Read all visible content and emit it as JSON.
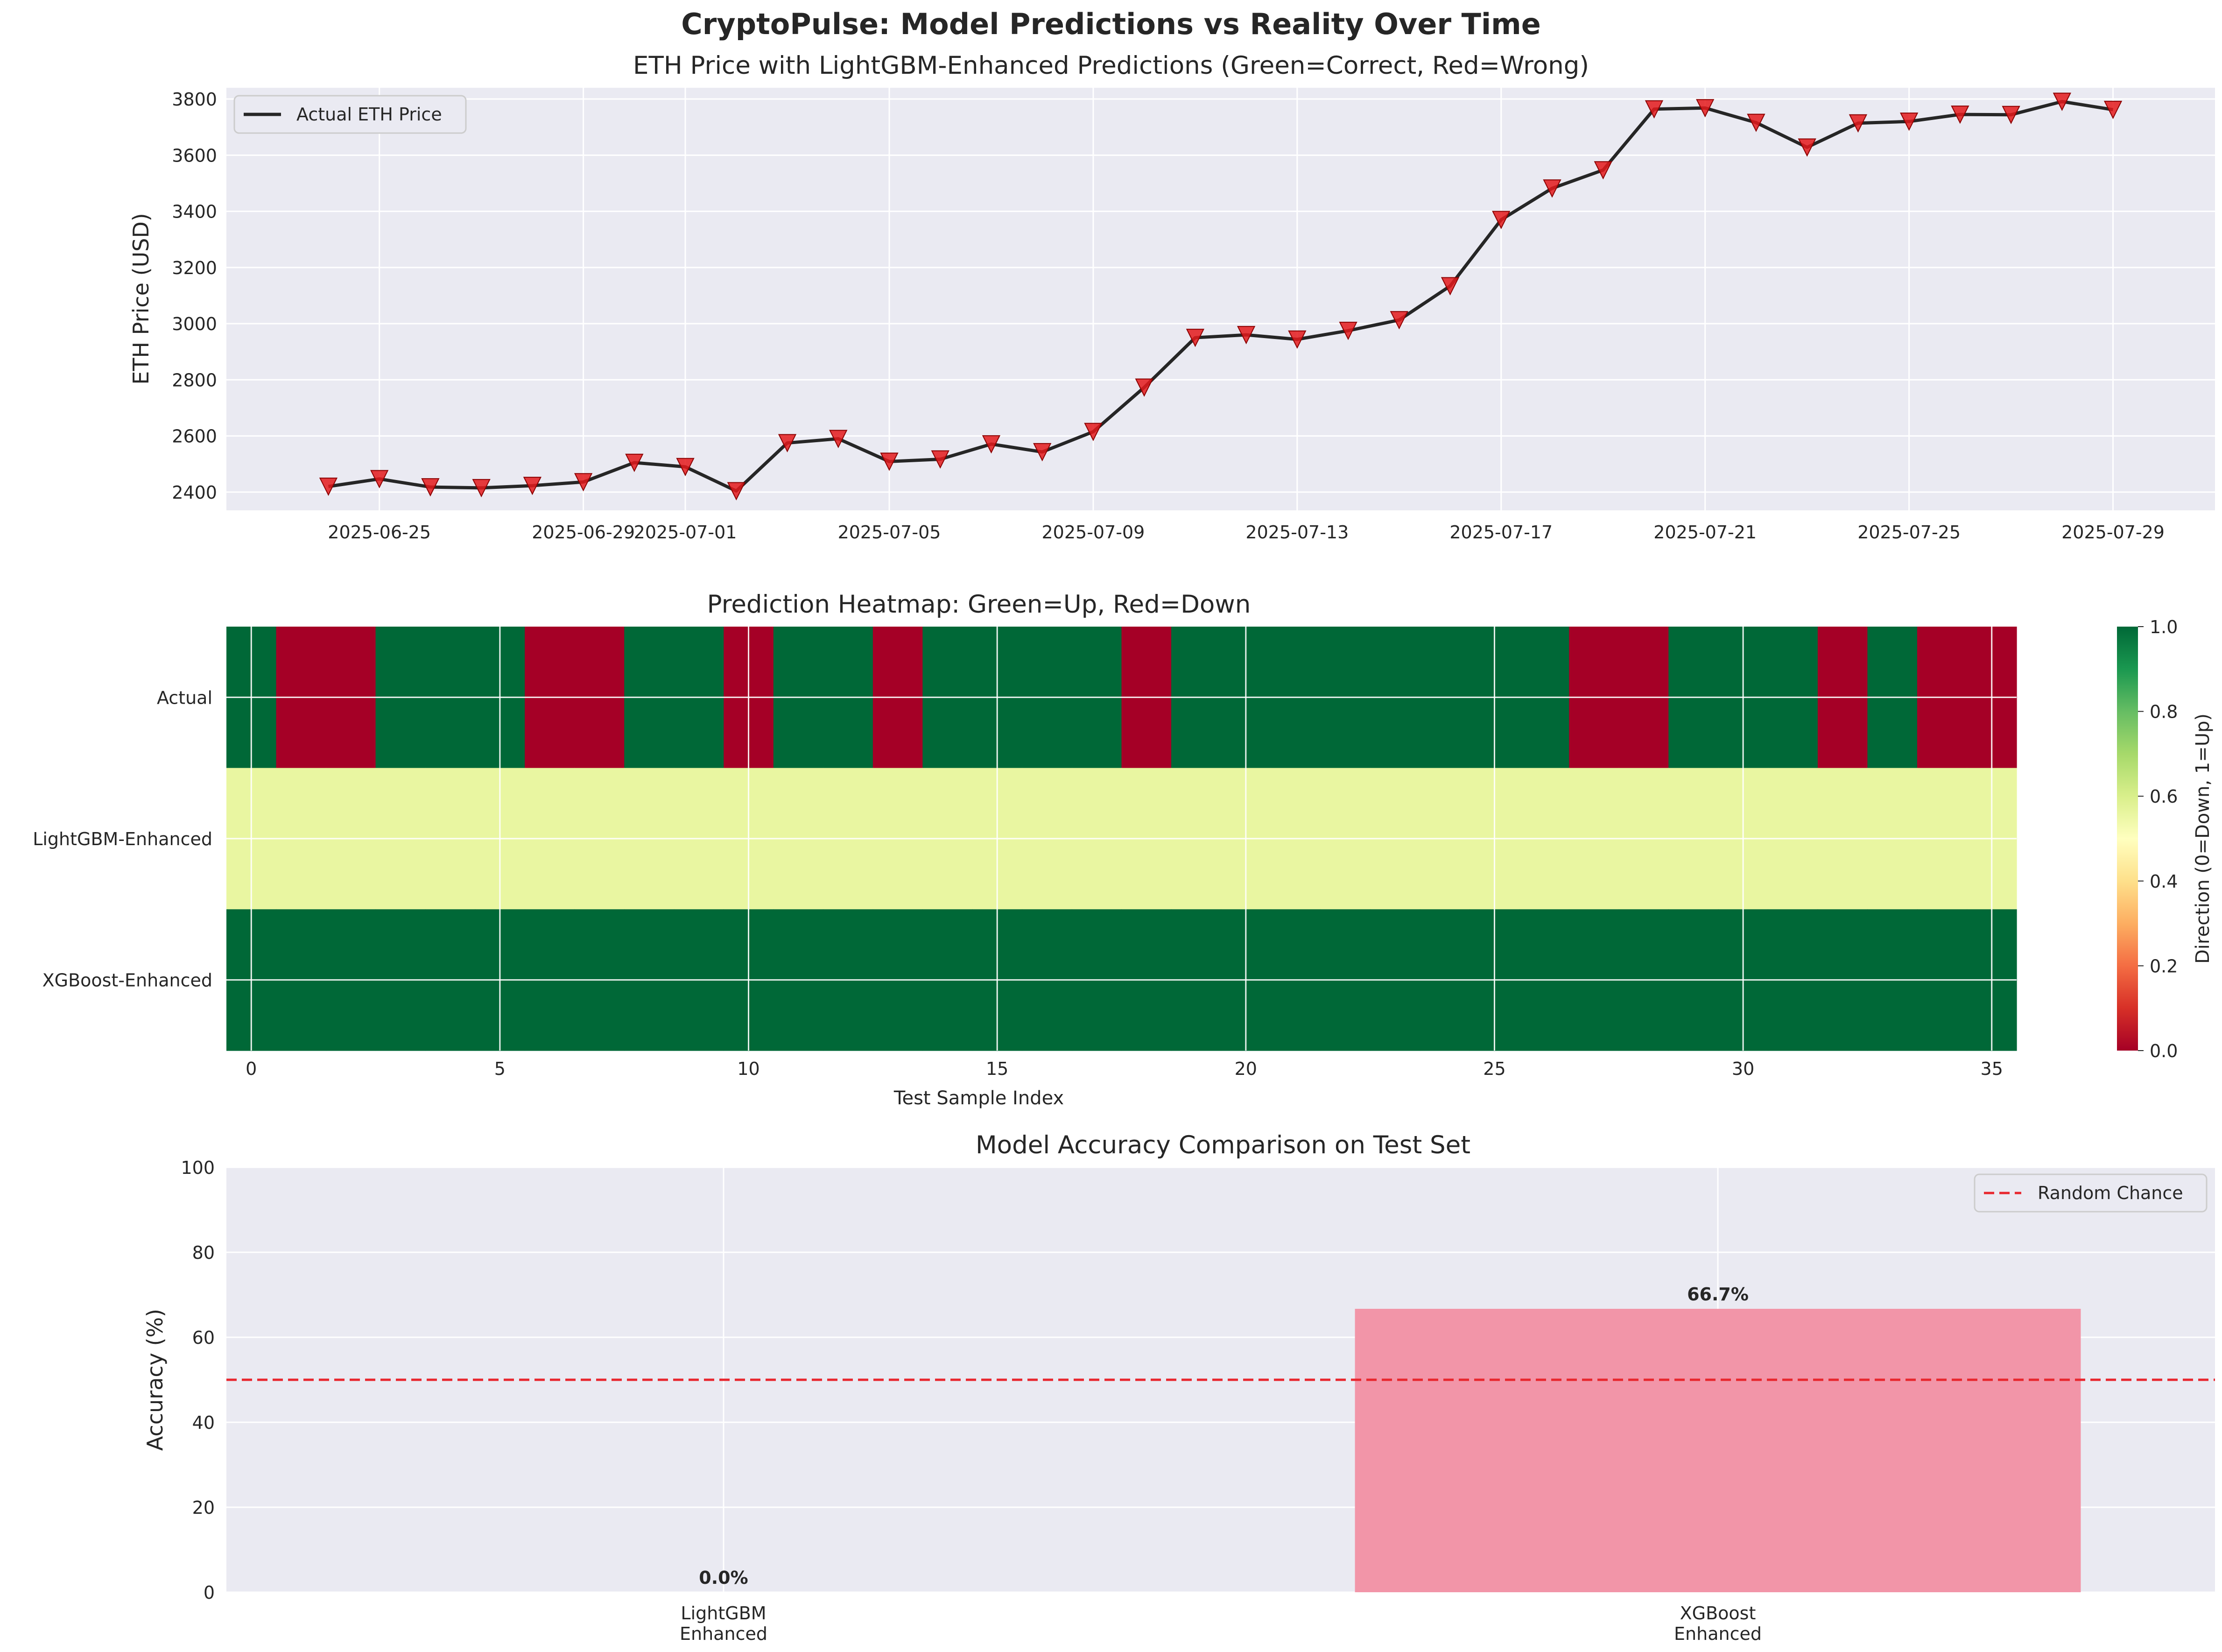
{
  "figure_title": "CryptoPulse: Model Predictions vs Reality Over Time",
  "colors": {
    "background": "#ffffff",
    "axes_face": "#eaeaf2",
    "grid": "#ffffff",
    "price_line": "#262626",
    "wrong_marker": "#e41a1c",
    "up_green": "#006837",
    "down_red": "#a50026",
    "neutral_yellow": "#e9f6a1",
    "bar_pink": "#f295a8",
    "random_chance": "#e8262d"
  },
  "chart_data": [
    {
      "type": "line",
      "title": "ETH Price with LightGBM-Enhanced Predictions (Green=Correct, Red=Wrong)",
      "xlabel": "",
      "ylabel": "ETH Price (USD)",
      "legend": {
        "placement": "upper-left",
        "entries": [
          "Actual ETH Price"
        ]
      },
      "grid": true,
      "ylim": [
        2335,
        3840
      ],
      "xlim": [
        "2025-06-22",
        "2025-07-31"
      ],
      "x_tick_labels": [
        "2025-06-25",
        "2025-06-29",
        "2025-07-01",
        "2025-07-05",
        "2025-07-09",
        "2025-07-13",
        "2025-07-17",
        "2025-07-21",
        "2025-07-25",
        "2025-07-29"
      ],
      "y_ticks": [
        2400,
        2600,
        2800,
        3000,
        3200,
        3400,
        3600,
        3800
      ],
      "x": [
        "2025-06-24",
        "2025-06-25",
        "2025-06-26",
        "2025-06-27",
        "2025-06-28",
        "2025-06-29",
        "2025-06-30",
        "2025-07-01",
        "2025-07-02",
        "2025-07-03",
        "2025-07-04",
        "2025-07-05",
        "2025-07-06",
        "2025-07-07",
        "2025-07-08",
        "2025-07-09",
        "2025-07-10",
        "2025-07-11",
        "2025-07-12",
        "2025-07-13",
        "2025-07-14",
        "2025-07-15",
        "2025-07-16",
        "2025-07-17",
        "2025-07-18",
        "2025-07-19",
        "2025-07-20",
        "2025-07-21",
        "2025-07-22",
        "2025-07-23",
        "2025-07-24",
        "2025-07-25",
        "2025-07-26",
        "2025-07-27",
        "2025-07-28",
        "2025-07-29"
      ],
      "series": [
        {
          "name": "Actual ETH Price",
          "values": [
            2420,
            2447,
            2418,
            2415,
            2423,
            2436,
            2505,
            2490,
            2404,
            2575,
            2590,
            2509,
            2517,
            2571,
            2543,
            2615,
            2773,
            2950,
            2960,
            2944,
            2975,
            3013,
            3134,
            3370,
            3482,
            3547,
            3764,
            3768,
            3716,
            3628,
            3714,
            3720,
            3745,
            3744,
            3791,
            3762
          ]
        }
      ],
      "marker_note": "All prediction markers are red downward triangles (wrong)"
    },
    {
      "type": "heatmap",
      "title": "Prediction Heatmap: Green=Up, Red=Down",
      "xlabel": "Test Sample Index",
      "ylabel": "",
      "x_ticks": [
        0,
        5,
        10,
        15,
        20,
        25,
        30,
        35
      ],
      "xlim": [
        -0.5,
        35.5
      ],
      "rows": [
        "Actual",
        "LightGBM-Enhanced",
        "XGBoost-Enhanced"
      ],
      "values": [
        [
          1,
          0,
          0,
          1,
          1,
          1,
          0,
          0,
          1,
          1,
          0,
          1,
          1,
          0,
          1,
          1,
          1,
          1,
          0,
          1,
          1,
          1,
          1,
          1,
          1,
          1,
          1,
          0,
          0,
          1,
          1,
          1,
          0,
          1,
          0,
          0
        ],
        [
          0.45,
          0.45,
          0.45,
          0.45,
          0.45,
          0.45,
          0.45,
          0.45,
          0.45,
          0.45,
          0.45,
          0.45,
          0.45,
          0.45,
          0.45,
          0.45,
          0.45,
          0.45,
          0.45,
          0.45,
          0.45,
          0.45,
          0.45,
          0.45,
          0.45,
          0.45,
          0.45,
          0.45,
          0.45,
          0.45,
          0.45,
          0.45,
          0.45,
          0.45,
          0.45,
          0.45
        ],
        [
          1,
          1,
          1,
          1,
          1,
          1,
          1,
          1,
          1,
          1,
          1,
          1,
          1,
          1,
          1,
          1,
          1,
          1,
          1,
          1,
          1,
          1,
          1,
          1,
          1,
          1,
          1,
          1,
          1,
          1,
          1,
          1,
          1,
          1,
          1,
          1
        ]
      ],
      "colorbar": {
        "label": "Direction (0=Down, 1=Up)",
        "range": [
          0,
          1
        ],
        "ticks": [
          "0.0",
          "0.2",
          "0.4",
          "0.6",
          "0.8",
          "1.0"
        ]
      }
    },
    {
      "type": "bar",
      "title": "Model Accuracy Comparison on Test Set",
      "xlabel": "",
      "ylabel": "Accuracy (%)",
      "ylim": [
        0,
        100
      ],
      "y_ticks": [
        0,
        20,
        40,
        60,
        80,
        100
      ],
      "categories": [
        [
          "LightGBM",
          "Enhanced"
        ],
        [
          "XGBoost",
          "Enhanced"
        ]
      ],
      "values": [
        0.0,
        66.7
      ],
      "data_labels": [
        "0.0%",
        "66.7%"
      ],
      "reference_line": {
        "value": 50,
        "label": "Random Chance",
        "style": "dashed"
      },
      "legend": {
        "placement": "upper-right",
        "entries": [
          "Random Chance"
        ]
      },
      "grid": true
    }
  ]
}
